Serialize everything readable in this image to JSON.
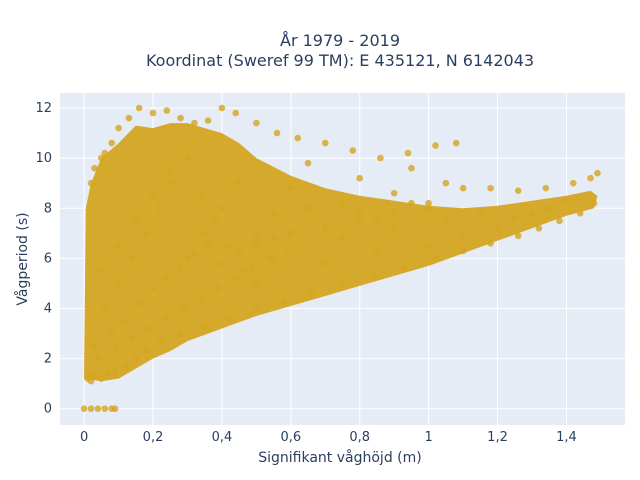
{
  "chart_data": {
    "type": "scatter",
    "title": "År 1979 - 2019",
    "subtitle": "Koordinat (Sweref 99 TM): E 435121, N 6142043",
    "xlabel": "Signifikant våghöjd (m)",
    "ylabel": "Vågperiod (s)",
    "xlim": [
      -0.07,
      1.57
    ],
    "ylim": [
      -0.65,
      12.6
    ],
    "x_ticks": [
      0,
      0.2,
      0.4,
      0.6,
      0.8,
      1,
      1.2,
      1.4
    ],
    "x_tick_labels": [
      "0",
      "0,2",
      "0,4",
      "0,6",
      "0,8",
      "1",
      "1,2",
      "1,4"
    ],
    "y_ticks": [
      0,
      2,
      4,
      6,
      8,
      10,
      12
    ],
    "y_tick_labels": [
      "0",
      "2",
      "4",
      "6",
      "8",
      "10",
      "12"
    ],
    "grid": true,
    "legend": "none",
    "series": [
      {
        "color": "#d4a520",
        "x": [
          0.0,
          0.02,
          0.04,
          0.06,
          0.08,
          0.09,
          0.01,
          0.02,
          0.03,
          0.05,
          0.07,
          0.09,
          0.12,
          0.15,
          0.18,
          0.22,
          0.28,
          0.35,
          0.42,
          0.5,
          0.58,
          0.66,
          0.75,
          0.84,
          0.93,
          1.02,
          1.1,
          1.18,
          1.26,
          1.32,
          1.38,
          1.44,
          1.48,
          0.02,
          0.03,
          0.05,
          0.06,
          0.08,
          0.1,
          0.13,
          0.16,
          0.2,
          0.24,
          0.28,
          0.32,
          0.36,
          0.4,
          0.44,
          0.5,
          0.56,
          0.62,
          0.7,
          0.78,
          0.86,
          0.94,
          1.02,
          1.1,
          1.18,
          1.26,
          1.34,
          1.42,
          1.47,
          1.49,
          0.06,
          0.1,
          0.14,
          0.18,
          0.22,
          0.26,
          0.3,
          0.34,
          0.38,
          0.42,
          0.46,
          0.5,
          0.55,
          0.6,
          0.65,
          0.7,
          0.75,
          0.8,
          0.85,
          0.9,
          0.95,
          1.0,
          1.05,
          1.08,
          0.05,
          0.1,
          0.15,
          0.2,
          0.25,
          0.3,
          0.35,
          0.4,
          0.45,
          0.5,
          0.55,
          0.6,
          0.65,
          0.7,
          0.75,
          0.8,
          0.85,
          0.9,
          0.95,
          1.0,
          1.05,
          1.1,
          1.15,
          1.2,
          1.25,
          1.3,
          1.35,
          1.4,
          0.03,
          0.08,
          0.12,
          0.16,
          0.2,
          0.24,
          0.28,
          0.32,
          0.36,
          0.4,
          0.45,
          0.5,
          0.55,
          0.6,
          0.7,
          0.8,
          0.9,
          1.0,
          0.04,
          0.09,
          0.14,
          0.19,
          0.24,
          0.29,
          0.34,
          0.39,
          0.44,
          0.49,
          0.54,
          0.59
        ],
        "y": [
          0.0,
          0.0,
          0.0,
          0.0,
          0.0,
          0.0,
          1.2,
          1.1,
          1.3,
          1.2,
          1.4,
          1.5,
          1.7,
          2.0,
          2.3,
          2.7,
          3.0,
          3.3,
          3.6,
          4.0,
          4.3,
          4.6,
          5.0,
          5.3,
          5.6,
          6.0,
          6.3,
          6.6,
          6.9,
          7.2,
          7.5,
          7.8,
          8.2,
          9.0,
          9.6,
          10.0,
          10.2,
          10.6,
          11.2,
          11.6,
          12.0,
          11.8,
          11.9,
          11.6,
          11.4,
          11.5,
          12.0,
          11.8,
          11.4,
          11.0,
          10.8,
          10.6,
          10.3,
          10.0,
          10.2,
          10.5,
          8.8,
          8.8,
          8.7,
          8.8,
          9.0,
          9.2,
          9.4,
          4.0,
          5.0,
          6.0,
          7.0,
          8.0,
          9.0,
          10.0,
          8.5,
          7.5,
          6.5,
          5.5,
          6.8,
          7.8,
          8.8,
          9.8,
          7.2,
          8.2,
          9.2,
          7.6,
          8.6,
          9.6,
          8.0,
          9.0,
          10.6,
          5.5,
          6.5,
          7.5,
          8.5,
          9.5,
          6.0,
          7.0,
          8.0,
          9.0,
          5.0,
          6.0,
          7.0,
          8.0,
          5.8,
          6.8,
          7.8,
          6.2,
          7.2,
          8.2,
          6.5,
          7.5,
          6.8,
          7.8,
          7.2,
          7.6,
          7.8,
          8.0,
          8.3,
          2.5,
          3.0,
          3.5,
          4.2,
          4.8,
          5.2,
          5.6,
          6.2,
          6.6,
          5.8,
          6.2,
          6.5,
          6.8,
          7.0,
          7.3,
          7.6,
          7.9,
          8.2,
          2.0,
          2.4,
          2.8,
          3.2,
          3.6,
          4.0,
          4.4,
          4.8,
          5.2,
          5.6,
          6.0,
          6.4
        ]
      }
    ]
  }
}
